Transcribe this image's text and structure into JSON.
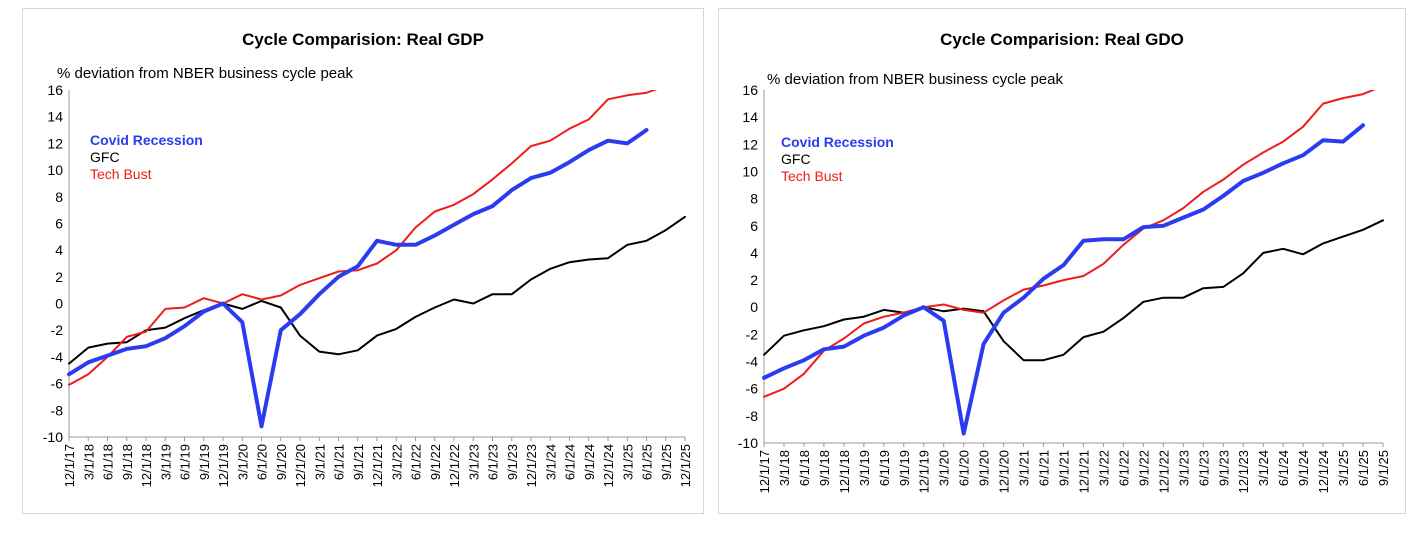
{
  "colors": {
    "covid": "#2b3cf0",
    "gfc": "#000000",
    "tech": "#ee1c1c"
  },
  "chart_data": [
    {
      "type": "line",
      "title": "Cycle Comparision: Real GDP",
      "ylabel": "% deviation from NBER business cycle peak",
      "xlabel": "",
      "ylim": [
        -10,
        16
      ],
      "yticks": [
        16,
        14,
        12,
        10,
        8,
        6,
        4,
        2,
        0,
        -2,
        -4,
        -6,
        -8,
        -10
      ],
      "x": [
        "12/1/17",
        "3/1/18",
        "6/1/18",
        "9/1/18",
        "12/1/18",
        "3/1/19",
        "6/1/19",
        "9/1/19",
        "12/1/19",
        "3/1/20",
        "6/1/20",
        "9/1/20",
        "12/1/20",
        "3/1/21",
        "6/1/21",
        "9/1/21",
        "12/1/21",
        "3/1/22",
        "6/1/22",
        "9/1/22",
        "12/1/22",
        "3/1/23",
        "6/1/23",
        "9/1/23",
        "12/1/23",
        "3/1/24",
        "6/1/24",
        "9/1/24",
        "12/1/24",
        "3/1/25",
        "6/1/25",
        "9/1/25",
        "12/1/25"
      ],
      "legend": {
        "placement": "upper-left"
      },
      "series": [
        {
          "name": "Covid Recession",
          "color_key": "covid",
          "style": "bold",
          "values": [
            -5.3,
            -4.4,
            -3.9,
            -3.4,
            -3.2,
            -2.6,
            -1.7,
            -0.6,
            0,
            -1.4,
            -9.2,
            -2.0,
            -0.8,
            0.7,
            2.0,
            2.8,
            4.7,
            4.4,
            4.4,
            5.1,
            5.9,
            6.7,
            7.3,
            8.5,
            9.4,
            9.8,
            10.6,
            11.5,
            12.2,
            12.0,
            13.0,
            null,
            null
          ]
        },
        {
          "name": "GFC",
          "color_key": "gfc",
          "style": "normal",
          "values": [
            -4.5,
            -3.3,
            -3.0,
            -2.9,
            -2.0,
            -1.8,
            -1.1,
            -0.5,
            0,
            -0.4,
            0.2,
            -0.3,
            -2.4,
            -3.6,
            -3.8,
            -3.5,
            -2.4,
            -1.9,
            -1.0,
            -0.3,
            0.3,
            0.0,
            0.7,
            0.7,
            1.8,
            2.6,
            3.1,
            3.3,
            3.4,
            4.4,
            4.7,
            5.5,
            6.5
          ]
        },
        {
          "name": "Tech Bust",
          "color_key": "tech",
          "style": "normal",
          "values": [
            -6.1,
            -5.3,
            -4.0,
            -2.5,
            -2.1,
            -0.4,
            -0.3,
            0.4,
            0.0,
            0.7,
            0.3,
            0.6,
            1.4,
            1.9,
            2.4,
            2.5,
            3.0,
            4.0,
            5.7,
            6.9,
            7.4,
            8.2,
            9.3,
            10.5,
            11.8,
            12.2,
            13.1,
            13.8,
            15.3,
            15.6,
            15.8,
            16.3,
            null
          ]
        }
      ]
    },
    {
      "type": "line",
      "title": "Cycle Comparision: Real GDO",
      "ylabel": "% deviation from NBER business cycle peak",
      "xlabel": "",
      "ylim": [
        -10,
        16
      ],
      "yticks": [
        16,
        14,
        12,
        10,
        8,
        6,
        4,
        2,
        0,
        -2,
        -4,
        -6,
        -8,
        -10
      ],
      "x": [
        "12/1/17",
        "3/1/18",
        "6/1/18",
        "9/1/18",
        "12/1/18",
        "3/1/19",
        "6/1/19",
        "9/1/19",
        "12/1/19",
        "3/1/20",
        "6/1/20",
        "9/1/20",
        "12/1/20",
        "3/1/21",
        "6/1/21",
        "9/1/21",
        "12/1/21",
        "3/1/22",
        "6/1/22",
        "9/1/22",
        "12/1/22",
        "3/1/23",
        "6/1/23",
        "9/1/23",
        "12/1/23",
        "3/1/24",
        "6/1/24",
        "9/1/24",
        "12/1/24",
        "3/1/25",
        "6/1/25",
        "9/1/25"
      ],
      "legend": {
        "placement": "upper-left"
      },
      "series": [
        {
          "name": "Covid Recession",
          "color_key": "covid",
          "style": "bold",
          "values": [
            -5.2,
            -4.5,
            -3.9,
            -3.1,
            -2.9,
            -2.1,
            -1.5,
            -0.6,
            0,
            -1.0,
            -9.3,
            -2.7,
            -0.4,
            0.7,
            2.1,
            3.1,
            4.9,
            5.0,
            5.0,
            5.9,
            6.0,
            6.6,
            7.2,
            8.2,
            9.3,
            9.9,
            10.6,
            11.2,
            12.3,
            12.2,
            13.4,
            null
          ]
        },
        {
          "name": "GFC",
          "color_key": "gfc",
          "style": "normal",
          "values": [
            -3.5,
            -2.1,
            -1.7,
            -1.4,
            -0.9,
            -0.7,
            -0.2,
            -0.4,
            0,
            -0.3,
            -0.1,
            -0.3,
            -2.5,
            -3.9,
            -3.9,
            -3.5,
            -2.2,
            -1.8,
            -0.8,
            0.4,
            0.7,
            0.7,
            1.4,
            1.5,
            2.5,
            4.0,
            4.3,
            3.9,
            4.7,
            5.2,
            5.7,
            6.4
          ]
        },
        {
          "name": "Tech Bust",
          "color_key": "tech",
          "style": "normal",
          "values": [
            -6.6,
            -6.0,
            -4.9,
            -3.2,
            -2.3,
            -1.2,
            -0.7,
            -0.4,
            0.0,
            0.2,
            -0.2,
            -0.4,
            0.5,
            1.3,
            1.6,
            2.0,
            2.3,
            3.2,
            4.6,
            5.8,
            6.4,
            7.3,
            8.5,
            9.4,
            10.5,
            11.4,
            12.2,
            13.3,
            15.0,
            15.4,
            15.7,
            16.3
          ]
        }
      ]
    }
  ]
}
